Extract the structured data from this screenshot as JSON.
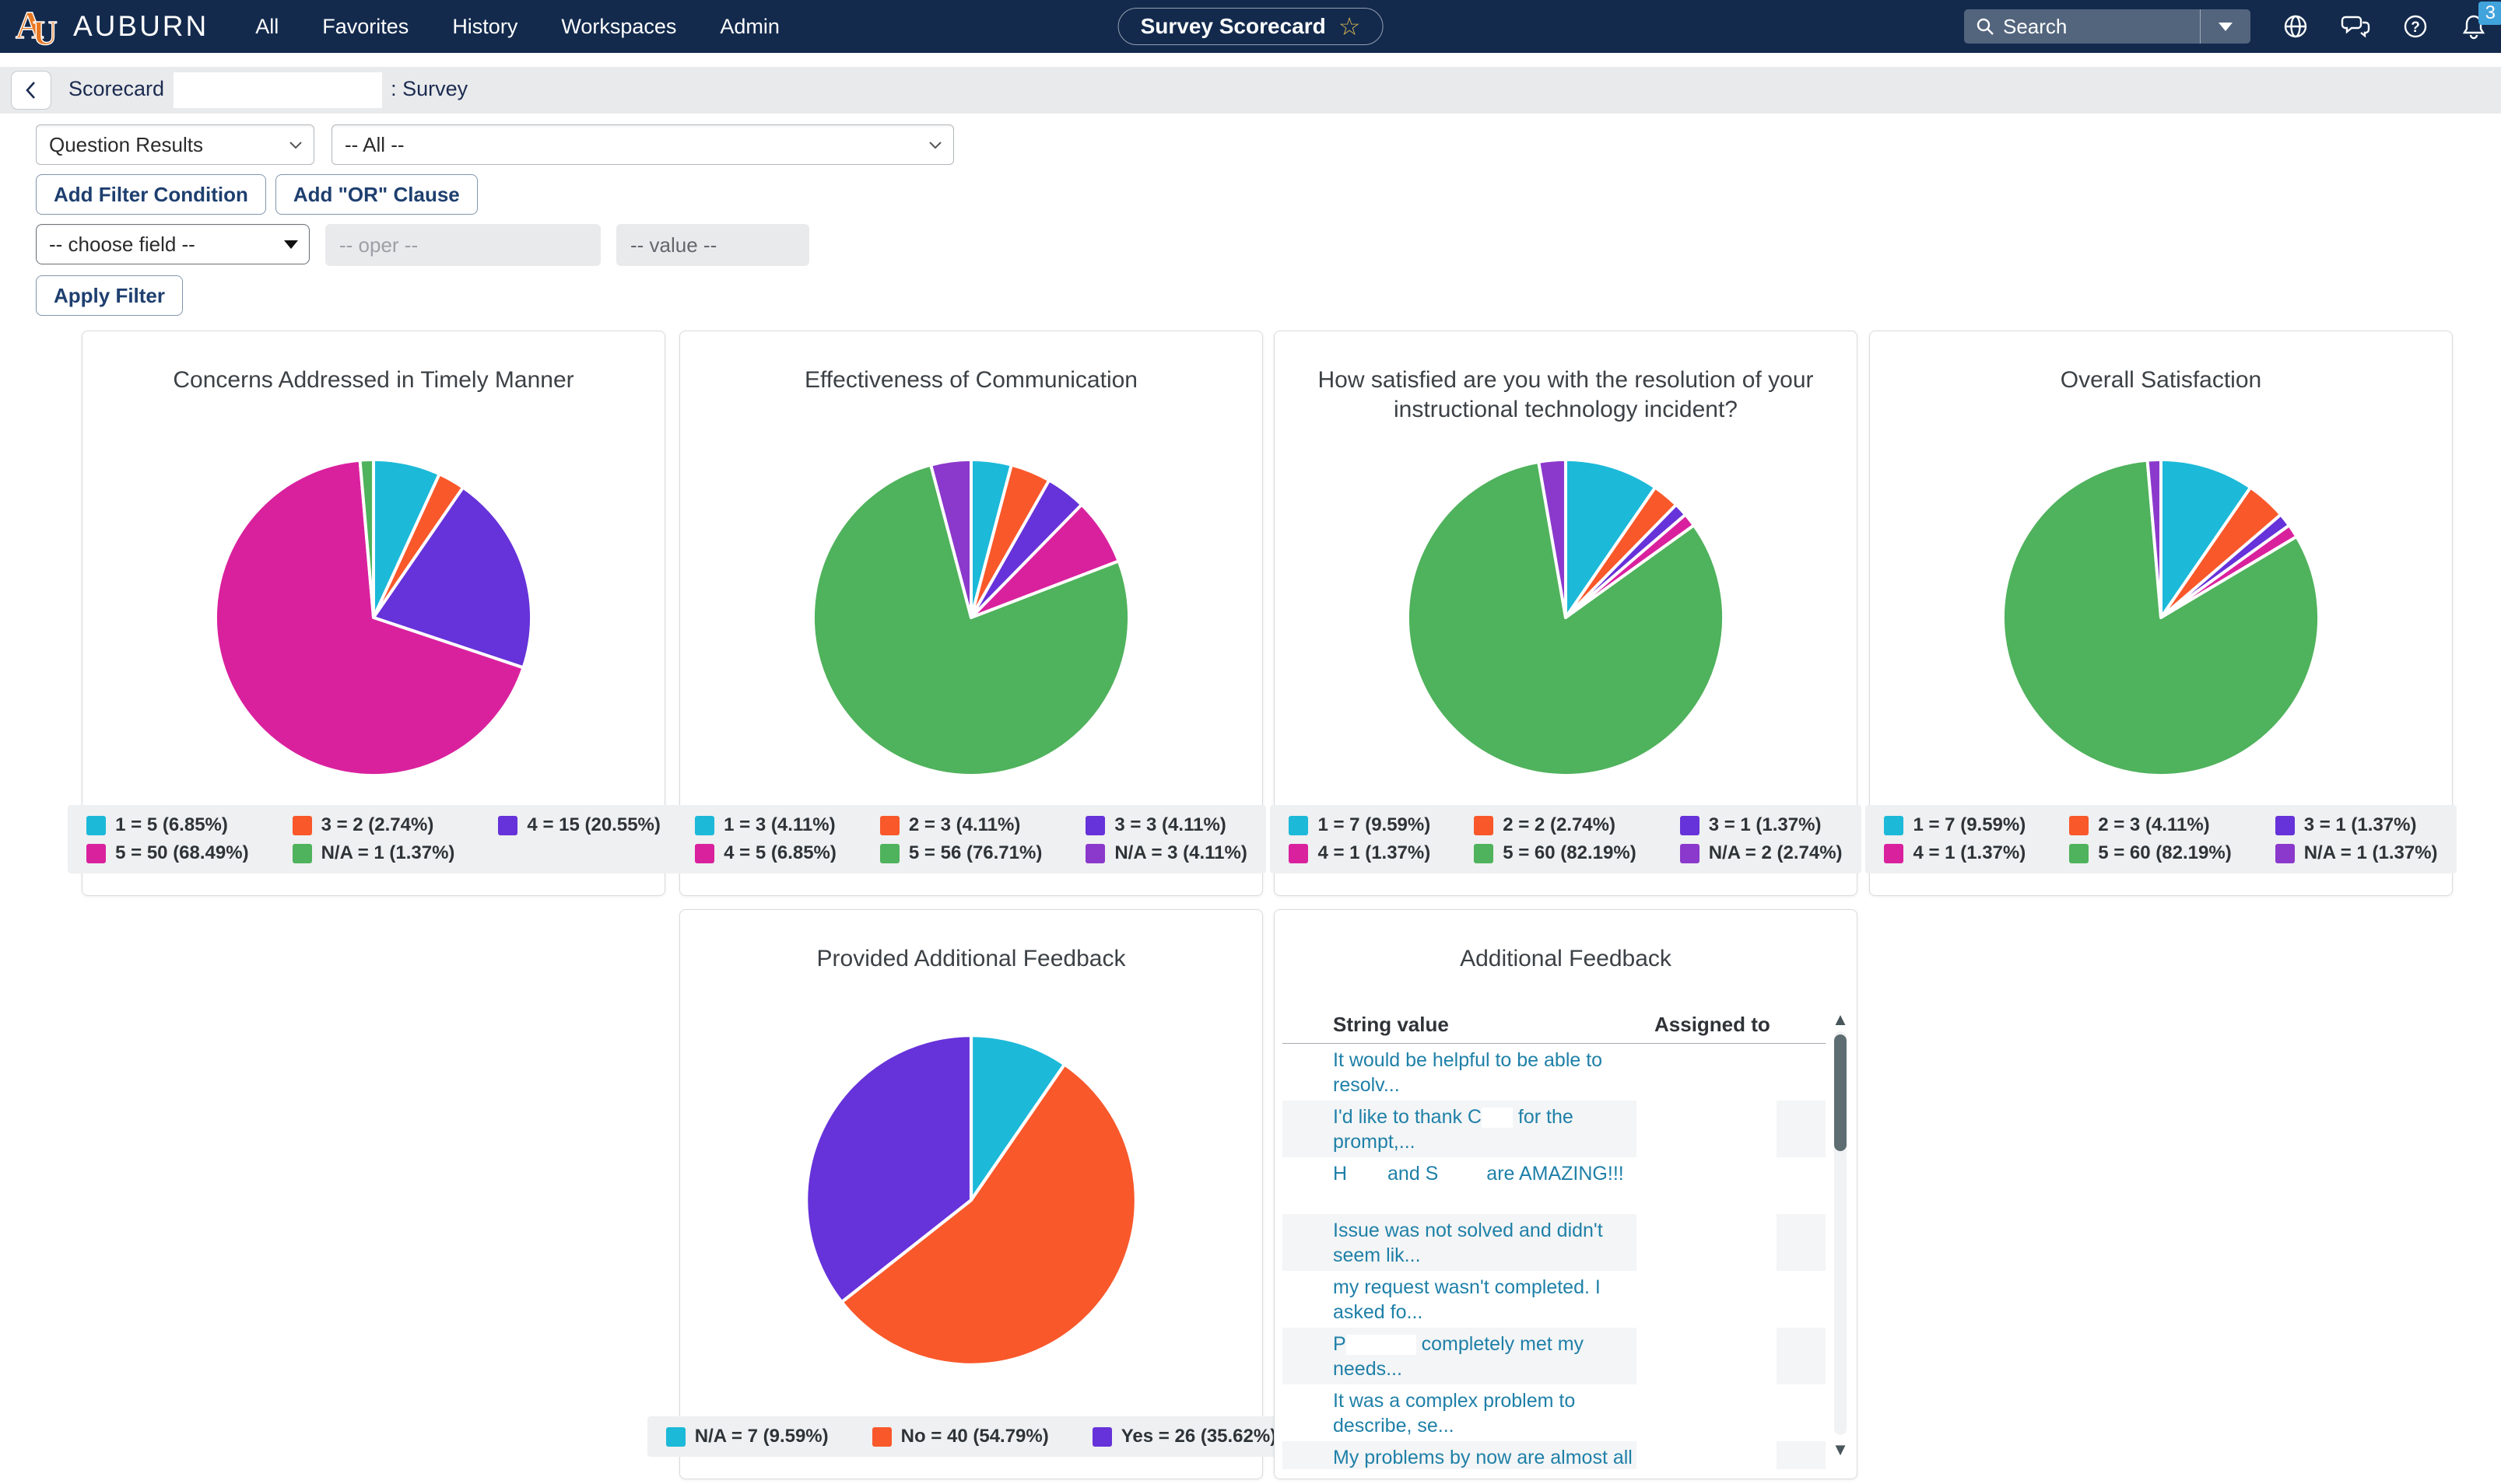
{
  "nav": {
    "logo": "AU",
    "brand": "AUBURN",
    "items": [
      {
        "label": "All"
      },
      {
        "label": "Favorites"
      },
      {
        "label": "History"
      },
      {
        "label": "Workspaces"
      },
      {
        "label": "Admin"
      }
    ],
    "app_title": "Survey Scorecard",
    "search_placeholder": "Search",
    "notification_count": "3"
  },
  "breadcrumb": {
    "prefix": "Scorecard",
    "suffix": ": Survey"
  },
  "filters": {
    "report_select": "Question Results",
    "scope_select": "-- All --",
    "add_filter_button": "Add Filter Condition",
    "add_or_button": "Add \"OR\" Clause",
    "field_select": "-- choose field --",
    "oper_placeholder": "-- oper --",
    "value_placeholder": "-- value --",
    "apply_button": "Apply Filter"
  },
  "colors": {
    "nav_navy": "#132A4D",
    "brand_orange": "#E87722",
    "badge_blue": "#41A3DC",
    "row_link": "#1F80A8",
    "legend_bg": "#EEF0F1",
    "stripe": "#F4F5F6",
    "palette": [
      "#1CB9D9",
      "#F9582B",
      "#6632D9",
      "#D9219E",
      "#4FB25C",
      "#8B39CC"
    ]
  },
  "chart_data": [
    {
      "type": "pie",
      "title": "Concerns Addressed in Timely Manner",
      "legend_position": "bottom",
      "slices": [
        {
          "label": "1",
          "count": 5,
          "pct": 6.85,
          "legend": "1 = 5 (6.85%)",
          "color": "#1CB9D9"
        },
        {
          "label": "3",
          "count": 2,
          "pct": 2.74,
          "legend": "3 = 2 (2.74%)",
          "color": "#F9582B"
        },
        {
          "label": "4",
          "count": 15,
          "pct": 20.55,
          "legend": "4 = 15 (20.55%)",
          "color": "#6632D9"
        },
        {
          "label": "5",
          "count": 50,
          "pct": 68.49,
          "legend": "5 = 50 (68.49%)",
          "color": "#D9219E"
        },
        {
          "label": "N/A",
          "count": 1,
          "pct": 1.37,
          "legend": "N/A = 1 (1.37%)",
          "color": "#4FB25C"
        }
      ]
    },
    {
      "type": "pie",
      "title": "Effectiveness of Communication",
      "legend_position": "bottom",
      "slices": [
        {
          "label": "1",
          "count": 3,
          "pct": 4.11,
          "legend": "1 = 3 (4.11%)",
          "color": "#1CB9D9"
        },
        {
          "label": "2",
          "count": 3,
          "pct": 4.11,
          "legend": "2 = 3 (4.11%)",
          "color": "#F9582B"
        },
        {
          "label": "3",
          "count": 3,
          "pct": 4.11,
          "legend": "3 = 3 (4.11%)",
          "color": "#6632D9"
        },
        {
          "label": "4",
          "count": 5,
          "pct": 6.85,
          "legend": "4 = 5 (6.85%)",
          "color": "#D9219E"
        },
        {
          "label": "5",
          "count": 56,
          "pct": 76.71,
          "legend": "5 = 56 (76.71%)",
          "color": "#4FB25C"
        },
        {
          "label": "N/A",
          "count": 3,
          "pct": 4.11,
          "legend": "N/A = 3 (4.11%)",
          "color": "#8B39CC"
        }
      ]
    },
    {
      "type": "pie",
      "title": "How satisfied are you with the resolution of your instructional technology incident?",
      "legend_position": "bottom",
      "slices": [
        {
          "label": "1",
          "count": 7,
          "pct": 9.59,
          "legend": "1 = 7 (9.59%)",
          "color": "#1CB9D9"
        },
        {
          "label": "2",
          "count": 2,
          "pct": 2.74,
          "legend": "2 = 2 (2.74%)",
          "color": "#F9582B"
        },
        {
          "label": "3",
          "count": 1,
          "pct": 1.37,
          "legend": "3 = 1 (1.37%)",
          "color": "#6632D9"
        },
        {
          "label": "4",
          "count": 1,
          "pct": 1.37,
          "legend": "4 = 1 (1.37%)",
          "color": "#D9219E"
        },
        {
          "label": "5",
          "count": 60,
          "pct": 82.19,
          "legend": "5 = 60 (82.19%)",
          "color": "#4FB25C"
        },
        {
          "label": "N/A",
          "count": 2,
          "pct": 2.74,
          "legend": "N/A = 2 (2.74%)",
          "color": "#8B39CC"
        }
      ]
    },
    {
      "type": "pie",
      "title": "Overall Satisfaction",
      "legend_position": "bottom",
      "slices": [
        {
          "label": "1",
          "count": 7,
          "pct": 9.59,
          "legend": "1 = 7 (9.59%)",
          "color": "#1CB9D9"
        },
        {
          "label": "2",
          "count": 3,
          "pct": 4.11,
          "legend": "2 = 3 (4.11%)",
          "color": "#F9582B"
        },
        {
          "label": "3",
          "count": 1,
          "pct": 1.37,
          "legend": "3 = 1 (1.37%)",
          "color": "#6632D9"
        },
        {
          "label": "4",
          "count": 1,
          "pct": 1.37,
          "legend": "4 = 1 (1.37%)",
          "color": "#D9219E"
        },
        {
          "label": "5",
          "count": 60,
          "pct": 82.19,
          "legend": "5 = 60 (82.19%)",
          "color": "#4FB25C"
        },
        {
          "label": "N/A",
          "count": 1,
          "pct": 1.37,
          "legend": "N/A = 1 (1.37%)",
          "color": "#8B39CC"
        }
      ]
    },
    {
      "type": "pie",
      "title": "Provided Additional Feedback",
      "legend_position": "bottom",
      "slices": [
        {
          "label": "N/A",
          "count": 7,
          "pct": 9.59,
          "legend": "N/A = 7 (9.59%)",
          "color": "#1CB9D9"
        },
        {
          "label": "No",
          "count": 40,
          "pct": 54.79,
          "legend": "No = 40 (54.79%)",
          "color": "#F9582B"
        },
        {
          "label": "Yes",
          "count": 26,
          "pct": 35.62,
          "legend": "Yes = 26 (35.62%)",
          "color": "#6632D9"
        }
      ]
    }
  ],
  "feedback_table": {
    "title": "Additional Feedback",
    "columns": [
      "String value",
      "Assigned to"
    ],
    "rows": [
      {
        "parts": [
          {
            "t": "It would be helpful to be able to resolv..."
          }
        ]
      },
      {
        "parts": [
          {
            "t": "I'd like to thank C"
          },
          {
            "r": 40
          },
          {
            "t": " for the prompt,..."
          }
        ]
      },
      {
        "parts": [
          {
            "t": "H"
          },
          {
            "r": 45
          },
          {
            "t": " and S"
          },
          {
            "r": 55
          },
          {
            "t": " are AMAZING!!!"
          }
        ]
      },
      {
        "parts": [
          {
            "t": "Issue was not solved and didn't seem lik..."
          }
        ]
      },
      {
        "parts": [
          {
            "t": "my request wasn't completed. I asked fo..."
          }
        ]
      },
      {
        "parts": [
          {
            "t": "P"
          },
          {
            "r": 90
          },
          {
            "t": " completely met my needs..."
          }
        ]
      },
      {
        "parts": [
          {
            "t": "It was a complex problem to describe, se..."
          }
        ]
      },
      {
        "parts": [
          {
            "t": "My problems by now are almost all"
          }
        ]
      }
    ]
  }
}
